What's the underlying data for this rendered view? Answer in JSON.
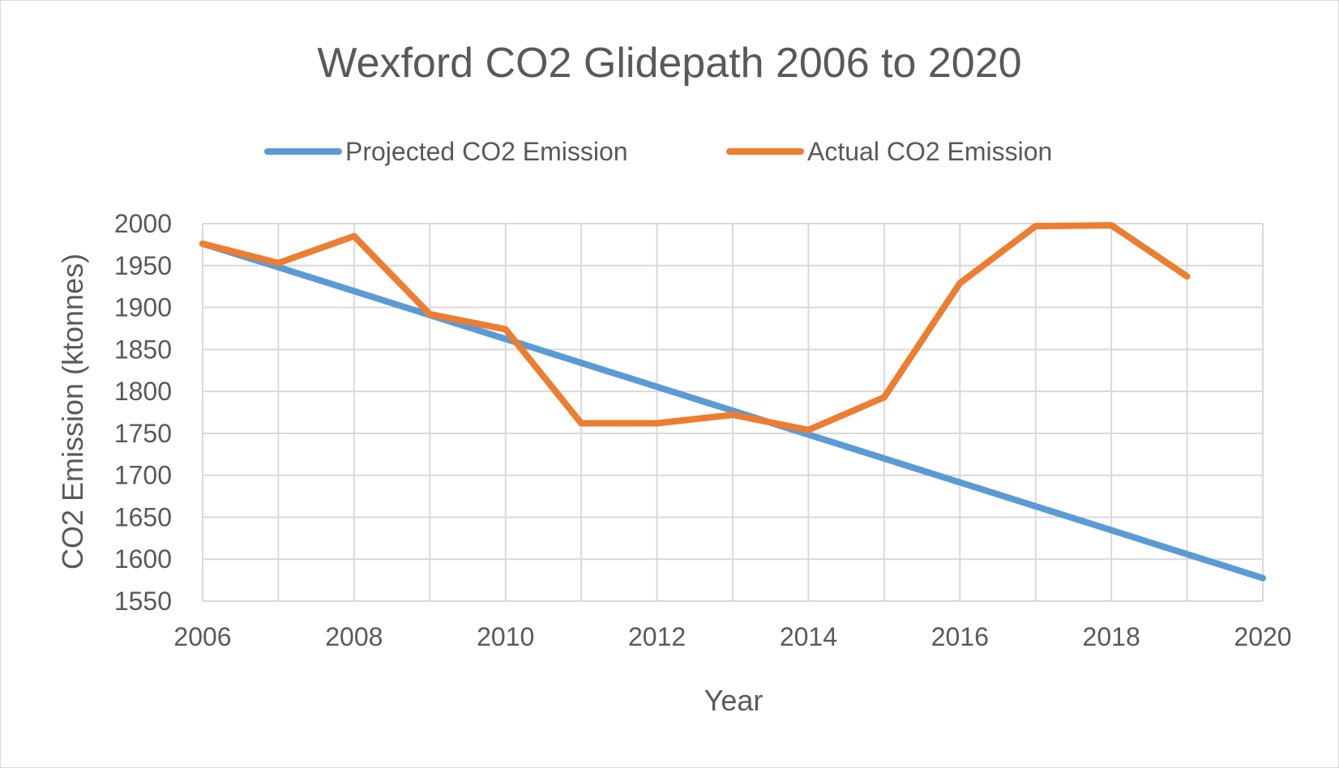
{
  "chart_data": {
    "type": "line",
    "title": "Wexford CO2 Glidepath 2006 to 2020",
    "xlabel": "Year",
    "ylabel": "CO2 Emission (ktonnes)",
    "xlim": [
      2006,
      2020
    ],
    "ylim": [
      1550,
      2000
    ],
    "x_ticks": [
      "2006",
      "2008",
      "2010",
      "2012",
      "2014",
      "2016",
      "2018",
      "2020"
    ],
    "y_ticks": [
      "2000",
      "1950",
      "1900",
      "1850",
      "1800",
      "1750",
      "1700",
      "1650",
      "1600",
      "1550"
    ],
    "grid": true,
    "legend_position": "top",
    "series": [
      {
        "name": "Projected CO2 Emission",
        "color": "#5b9bd5",
        "x": [
          2006,
          2007,
          2008,
          2009,
          2010,
          2011,
          2012,
          2013,
          2014,
          2015,
          2016,
          2017,
          2018,
          2019,
          2020
        ],
        "values": [
          1976,
          1948,
          1919.5,
          1891,
          1862.5,
          1834,
          1805.5,
          1777,
          1748.5,
          1720,
          1691.5,
          1663,
          1634.5,
          1606,
          1577.5
        ]
      },
      {
        "name": "Actual CO2 Emission",
        "color": "#ed7d31",
        "x": [
          2006,
          2007,
          2008,
          2009,
          2010,
          2011,
          2012,
          2013,
          2014,
          2015,
          2016,
          2017,
          2018,
          2019
        ],
        "values": [
          1976,
          1953,
          1985,
          1892,
          1874,
          1762,
          1762,
          1772,
          1754,
          1793,
          1929,
          1997,
          1998,
          1937
        ]
      }
    ]
  }
}
